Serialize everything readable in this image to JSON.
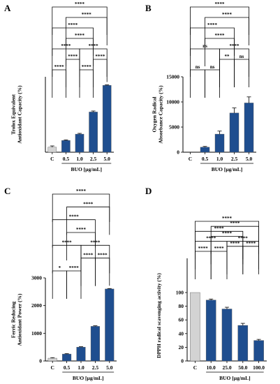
{
  "chart_data": [
    {
      "panel": "A",
      "type": "bar",
      "ylabel": "Trolox Equivalent\nAntioxidant Capacity (%)",
      "xlabel": "BUO [µg/mL]",
      "categories": [
        "C",
        "0.5",
        "1.0",
        "2.5",
        "5.0"
      ],
      "values": [
        100,
        235,
        360,
        800,
        1330
      ],
      "errors": [
        25,
        10,
        15,
        20,
        10
      ],
      "colors": [
        "#d3d3d3",
        "#1f4e8f",
        "#1f4e8f",
        "#1f4e8f",
        "#1f4e8f"
      ],
      "ylim": [
        0,
        1500
      ],
      "yticks": [],
      "brackets": [
        {
          "a": 0,
          "b": 1,
          "label": "****"
        },
        {
          "a": 2,
          "b": 3,
          "label": "****"
        },
        {
          "a": 1,
          "b": 2,
          "label": "****"
        },
        {
          "a": 3,
          "b": 4,
          "label": "****"
        },
        {
          "a": 0,
          "b": 2,
          "label": "****"
        },
        {
          "a": 2,
          "b": 4,
          "label": "****"
        },
        {
          "a": 1,
          "b": 3,
          "label": "****"
        },
        {
          "a": 0,
          "b": 3,
          "label": "****"
        },
        {
          "a": 1,
          "b": 4,
          "label": "****"
        },
        {
          "a": 0,
          "b": 4,
          "label": "****"
        }
      ]
    },
    {
      "panel": "B",
      "type": "bar",
      "ylabel": "Oxygen Radical\nAbsorbance Capacity (%)",
      "xlabel": "BUO [µg/mL]",
      "categories": [
        "C",
        "0.5",
        "1.0",
        "2.5",
        "5.0"
      ],
      "values": [
        0,
        1000,
        3600,
        7800,
        9800
      ],
      "errors": [
        0,
        150,
        600,
        1000,
        1200
      ],
      "colors": [
        "#d3d3d3",
        "#1f4e8f",
        "#1f4e8f",
        "#1f4e8f",
        "#1f4e8f"
      ],
      "ylim": [
        0,
        15000
      ],
      "yticks": [
        0,
        5000,
        10000,
        15000
      ],
      "brackets": [
        {
          "a": 0,
          "b": 1,
          "label": "ns"
        },
        {
          "a": 1,
          "b": 2,
          "label": "ns"
        },
        {
          "a": 2,
          "b": 3,
          "label": "**"
        },
        {
          "a": 3,
          "b": 4,
          "label": "ns"
        },
        {
          "a": 0,
          "b": 2,
          "label": "ns"
        },
        {
          "a": 2,
          "b": 4,
          "label": "****"
        },
        {
          "a": 1,
          "b": 3,
          "label": "****"
        },
        {
          "a": 0,
          "b": 3,
          "label": "****"
        },
        {
          "a": 1,
          "b": 4,
          "label": "****"
        },
        {
          "a": 0,
          "b": 4,
          "label": "****"
        }
      ]
    },
    {
      "panel": "C",
      "type": "bar",
      "ylabel": "Ferric Reducing\nAntioxidant Power (%)",
      "xlabel": "BUO [µg/mL]",
      "categories": [
        "C",
        "0.5",
        "1.0",
        "2.5",
        "5.0"
      ],
      "values": [
        100,
        250,
        500,
        1250,
        2600
      ],
      "errors": [
        20,
        15,
        15,
        20,
        15
      ],
      "colors": [
        "#d3d3d3",
        "#1f4e8f",
        "#1f4e8f",
        "#1f4e8f",
        "#1f4e8f"
      ],
      "ylim": [
        0,
        3000
      ],
      "yticks": [
        0,
        1000,
        2000,
        3000
      ],
      "brackets": [
        {
          "a": 0,
          "b": 1,
          "label": "*"
        },
        {
          "a": 1,
          "b": 2,
          "label": "****"
        },
        {
          "a": 2,
          "b": 3,
          "label": "****"
        },
        {
          "a": 3,
          "b": 4,
          "label": "****"
        },
        {
          "a": 0,
          "b": 2,
          "label": "****"
        },
        {
          "a": 2,
          "b": 4,
          "label": "****"
        },
        {
          "a": 1,
          "b": 3,
          "label": "****"
        },
        {
          "a": 0,
          "b": 3,
          "label": "****"
        },
        {
          "a": 1,
          "b": 4,
          "label": "****"
        },
        {
          "a": 0,
          "b": 4,
          "label": "****"
        }
      ]
    },
    {
      "panel": "D",
      "type": "bar",
      "ylabel": "DPPH radical scavenging activity (%)",
      "xlabel": "BUO [µg/mL]",
      "categories": [
        "C",
        "10.0",
        "25.0",
        "50.0",
        "100.0"
      ],
      "values": [
        100,
        89,
        76,
        52,
        30
      ],
      "errors": [
        0,
        1.5,
        2.5,
        3,
        1.5
      ],
      "colors": [
        "#d3d3d3",
        "#1f4e8f",
        "#1f4e8f",
        "#1f4e8f",
        "#1f4e8f"
      ],
      "ylim": [
        0,
        150
      ],
      "yticks": [
        0,
        20,
        40,
        60,
        80,
        100
      ],
      "brackets": [
        {
          "a": 0,
          "b": 1,
          "label": "****"
        },
        {
          "a": 1,
          "b": 2,
          "label": "****"
        },
        {
          "a": 2,
          "b": 3,
          "label": "****"
        },
        {
          "a": 3,
          "b": 4,
          "label": "****"
        },
        {
          "a": 0,
          "b": 2,
          "label": "****"
        },
        {
          "a": 2,
          "b": 4,
          "label": "****"
        },
        {
          "a": 1,
          "b": 3,
          "label": "****"
        },
        {
          "a": 0,
          "b": 3,
          "label": "****"
        },
        {
          "a": 1,
          "b": 4,
          "label": "****"
        },
        {
          "a": 0,
          "b": 4,
          "label": "****"
        }
      ]
    }
  ]
}
